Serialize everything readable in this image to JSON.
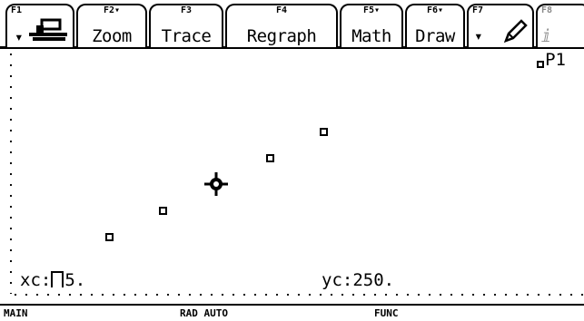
{
  "toolbar": {
    "keys": [
      {
        "fn": "F1",
        "label": ""
      },
      {
        "fn": "F2▾",
        "label": "Zoom"
      },
      {
        "fn": "F3",
        "label": "Trace"
      },
      {
        "fn": "F4",
        "label": "Regraph"
      },
      {
        "fn": "F5▾",
        "label": "Math"
      },
      {
        "fn": "F6▾",
        "label": "Draw"
      },
      {
        "fn": "F7",
        "label": "▾"
      },
      {
        "fn": "F8",
        "label": "ⅈ"
      }
    ]
  },
  "graph": {
    "legend": "P1",
    "points": [
      {
        "x": 1,
        "y": 1
      },
      {
        "x": 2,
        "y": 2
      },
      {
        "x": 4,
        "y": 4
      },
      {
        "x": 5,
        "y": 5
      }
    ],
    "cursor": {
      "x": 3,
      "y": 3
    },
    "readout_x_label": "xc:",
    "readout_x_value": "5.",
    "readout_y_label": "yc:",
    "readout_y_value": "250."
  },
  "status": {
    "folder": "MAIN",
    "mode": "RAD AUTO",
    "graph_mode": "FUNC"
  }
}
